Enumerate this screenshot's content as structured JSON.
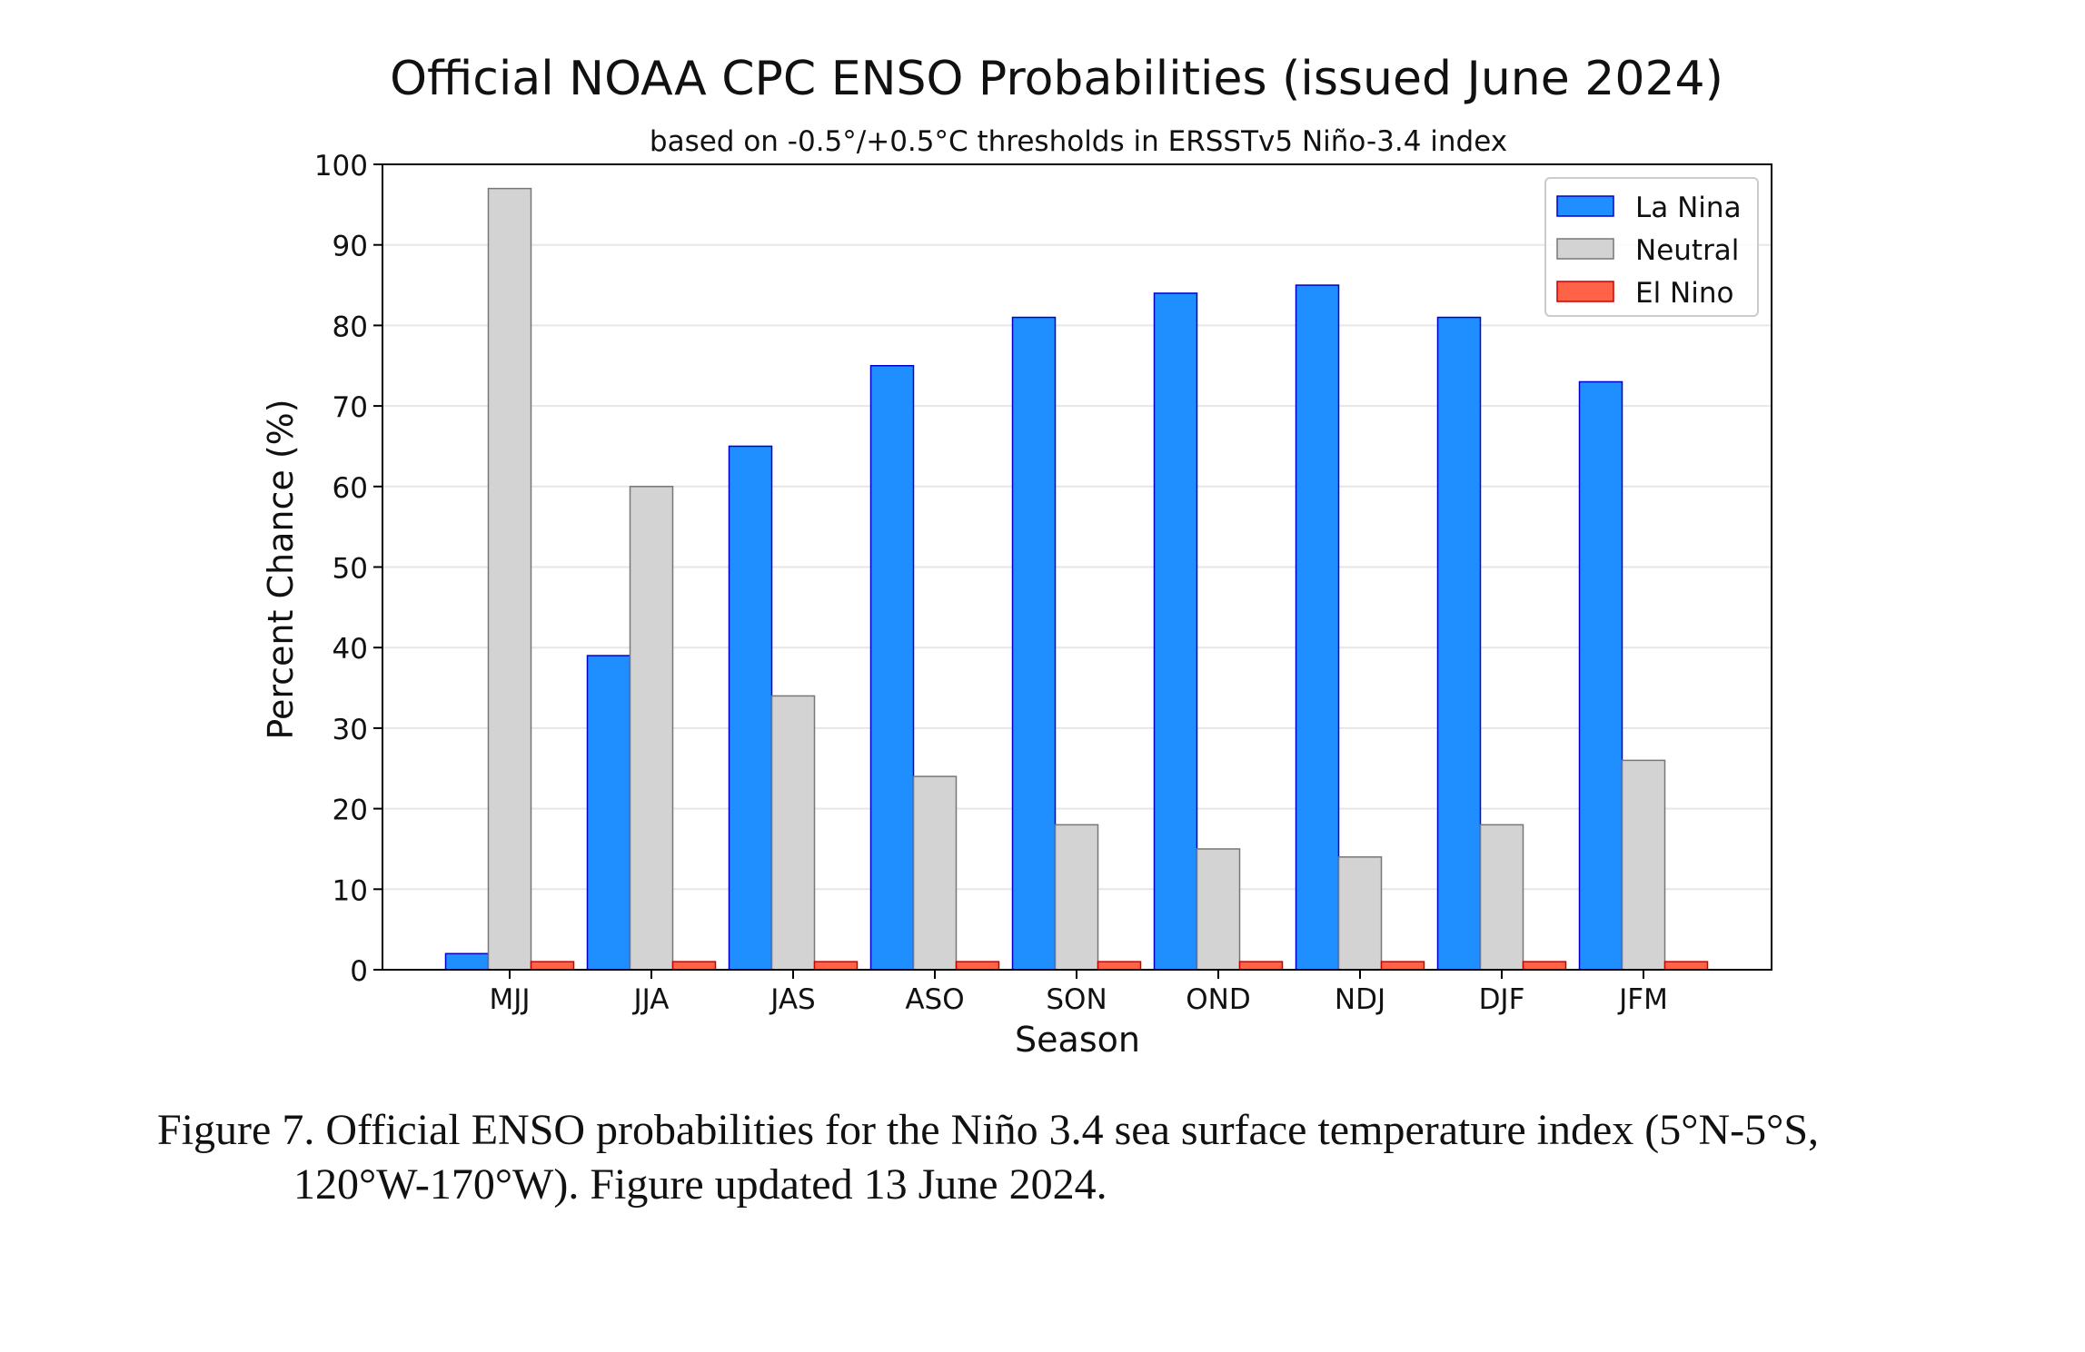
{
  "chart_data": {
    "type": "bar",
    "title": "Official NOAA CPC ENSO Probabilities (issued June 2024)",
    "subtitle": "based on -0.5°/+0.5°C thresholds in ERSSTv5 Niño-3.4 index",
    "xlabel": "Season",
    "ylabel": "Percent Chance (%)",
    "ylim": [
      0,
      100
    ],
    "yticks": [
      0,
      10,
      20,
      30,
      40,
      50,
      60,
      70,
      80,
      90,
      100
    ],
    "grid": true,
    "legend_position": "top-right",
    "categories": [
      "MJJ",
      "JJA",
      "JAS",
      "ASO",
      "SON",
      "OND",
      "NDJ",
      "DJF",
      "JFM"
    ],
    "series": [
      {
        "name": "La Nina",
        "color": "#1f8fff",
        "edge": "#0000cc",
        "values": [
          2,
          39,
          65,
          75,
          81,
          84,
          85,
          81,
          73
        ]
      },
      {
        "name": "Neutral",
        "color": "#d3d3d3",
        "edge": "#777777",
        "values": [
          97,
          60,
          34,
          24,
          18,
          15,
          14,
          18,
          26
        ]
      },
      {
        "name": "El Nino",
        "color": "#ff6347",
        "edge": "#cc0000",
        "values": [
          1,
          1,
          1,
          1,
          1,
          1,
          1,
          1,
          1
        ]
      }
    ]
  },
  "caption": {
    "line1": "Figure 7. Official ENSO probabilities for the Niño 3.4 sea surface temperature index (5°N-5°S,",
    "line2": "120°W-170°W). Figure updated 13 June 2024."
  }
}
